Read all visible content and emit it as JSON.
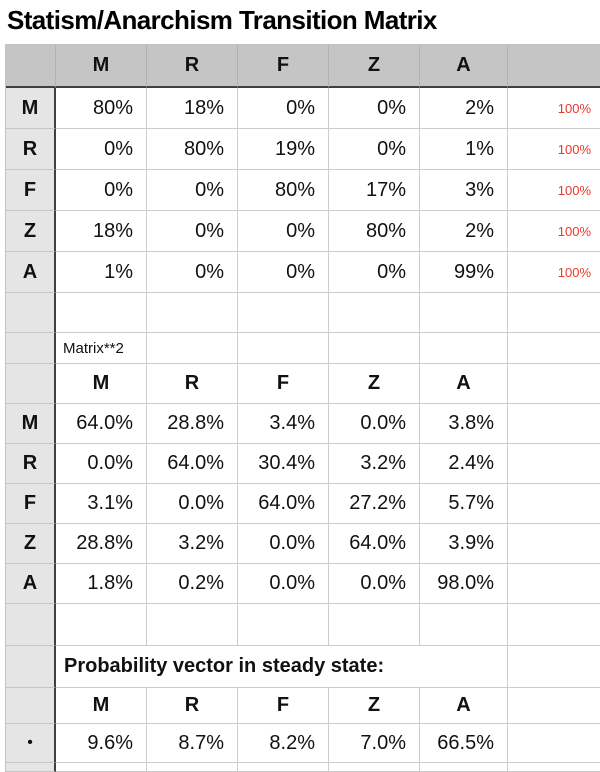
{
  "title": "Statism/Anarchism Transition Matrix",
  "states": [
    "M",
    "R",
    "F",
    "Z",
    "A"
  ],
  "colors": {
    "header_bg": "#c5c5c5",
    "row_label_bg": "#e5e5e5",
    "grid_line": "#cccccc",
    "dark_separator": "#3f3f3f",
    "row_sum_red": "#e8382b"
  },
  "matrix1": {
    "rows": [
      {
        "label": "M",
        "values": [
          "80%",
          "18%",
          "0%",
          "0%",
          "2%"
        ],
        "sum": "100%"
      },
      {
        "label": "R",
        "values": [
          "0%",
          "80%",
          "19%",
          "0%",
          "1%"
        ],
        "sum": "100%"
      },
      {
        "label": "F",
        "values": [
          "0%",
          "0%",
          "80%",
          "17%",
          "3%"
        ],
        "sum": "100%"
      },
      {
        "label": "Z",
        "values": [
          "18%",
          "0%",
          "0%",
          "80%",
          "2%"
        ],
        "sum": "100%"
      },
      {
        "label": "A",
        "values": [
          "1%",
          "0%",
          "0%",
          "0%",
          "99%"
        ],
        "sum": "100%"
      }
    ]
  },
  "matrix2": {
    "caption": "Matrix**2",
    "rows": [
      {
        "label": "M",
        "values": [
          "64.0%",
          "28.8%",
          "3.4%",
          "0.0%",
          "3.8%"
        ]
      },
      {
        "label": "R",
        "values": [
          "0.0%",
          "64.0%",
          "30.4%",
          "3.2%",
          "2.4%"
        ]
      },
      {
        "label": "F",
        "values": [
          "3.1%",
          "0.0%",
          "64.0%",
          "27.2%",
          "5.7%"
        ]
      },
      {
        "label": "Z",
        "values": [
          "28.8%",
          "3.2%",
          "0.0%",
          "64.0%",
          "3.9%"
        ]
      },
      {
        "label": "A",
        "values": [
          "1.8%",
          "0.2%",
          "0.0%",
          "0.0%",
          "98.0%"
        ]
      }
    ]
  },
  "steady_state": {
    "caption": "Probability vector in steady state:",
    "row_marker": "•",
    "values": [
      "9.6%",
      "8.7%",
      "8.2%",
      "7.0%",
      "66.5%"
    ]
  }
}
